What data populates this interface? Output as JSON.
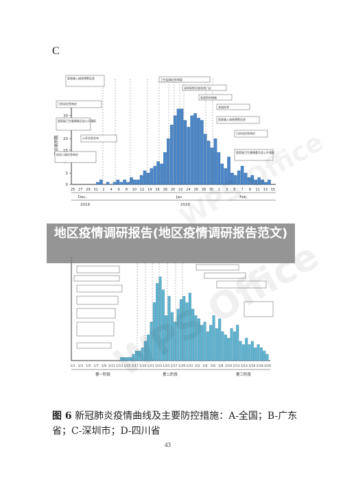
{
  "panel_letter": "C",
  "overlay_title": "地区疫情调研报告(地区疫情调研报告范文)",
  "caption": {
    "figure_number": "图 6",
    "text": "新冠肺炎疫情曲线及主要防控措施：A-全国；B-广东省；C-深圳市；D-四川省"
  },
  "page_number": "43",
  "watermark": "WPS Office",
  "colors": {
    "bar_c": "#4a86c8",
    "bar_d": "#5fb3d0",
    "axis": "#333333",
    "dashed": "#777777",
    "overlay": "#888888"
  },
  "chart_data": [
    {
      "type": "bar",
      "panel": "C",
      "ylabel": "确诊病例数",
      "yticks": [
        "0",
        "5",
        "10",
        "15",
        "20",
        "25",
        "30",
        "35"
      ],
      "ylim": [
        0,
        35
      ],
      "x_tick_labels": [
        "25",
        "27",
        "29",
        "31",
        "2",
        "4",
        "6",
        "8",
        "10",
        "12",
        "14",
        "16",
        "18",
        "20",
        "22",
        "24",
        "26",
        "28",
        "30",
        "1",
        "3",
        "5",
        "7",
        "9",
        "11",
        "13",
        "15"
      ],
      "month_labels": [
        "Dec.",
        "Jan.",
        "Feb."
      ],
      "year_labels": [
        "2019",
        "2020"
      ],
      "values": [
        0,
        0,
        0,
        0,
        0,
        0,
        0,
        1,
        2,
        0,
        1,
        0,
        1,
        2,
        1,
        2,
        1,
        3,
        2,
        2,
        4,
        6,
        5,
        7,
        8,
        10,
        9,
        14,
        20,
        26,
        30,
        33,
        33,
        28,
        25,
        30,
        31,
        29,
        28,
        22,
        19,
        16,
        20,
        14,
        9,
        7,
        12,
        5,
        4,
        6,
        8,
        5,
        3,
        4,
        2,
        3,
        2,
        1,
        2,
        0
      ],
      "annotations": [
        "获悉输入病例预警信息",
        "已启动应急响应",
        "国家级卫生健康委员会公开通报",
        "公开信息发布",
        "启动二级应急响应",
        "卫生疫情应急预案",
        "深圳医院开放发热门诊",
        "各类防控措施",
        "多措并举"
      ]
    },
    {
      "type": "bar",
      "panel": "D",
      "x_tick_labels": [
        "1/1",
        "1/3",
        "1/5",
        "1/7",
        "1/9",
        "1/11",
        "1/13",
        "1/15",
        "1/17",
        "1/19",
        "1/21",
        "1/23",
        "1/25",
        "1/27",
        "1/29",
        "1/31",
        "2/2",
        "2/4",
        "2/6",
        "2/8",
        "2/10",
        "2/12",
        "2/14",
        "2/16",
        "2/18",
        "2/20"
      ],
      "phase_labels": [
        "第一阶段",
        "第二阶段",
        "第三阶段"
      ],
      "values": [
        0,
        0,
        0,
        0,
        0,
        0,
        0,
        0,
        0,
        0,
        0,
        0,
        0,
        0,
        0,
        0,
        1,
        1,
        1,
        1,
        2,
        3,
        3,
        4,
        6,
        8,
        12,
        18,
        24,
        26,
        22,
        14,
        20,
        15,
        12,
        16,
        19,
        20,
        18,
        21,
        16,
        14,
        13,
        11,
        12,
        9,
        11,
        14,
        10,
        13,
        9,
        8,
        7,
        10,
        9,
        11,
        6,
        5,
        7,
        5,
        6,
        4,
        5,
        4,
        3,
        2
      ]
    }
  ]
}
